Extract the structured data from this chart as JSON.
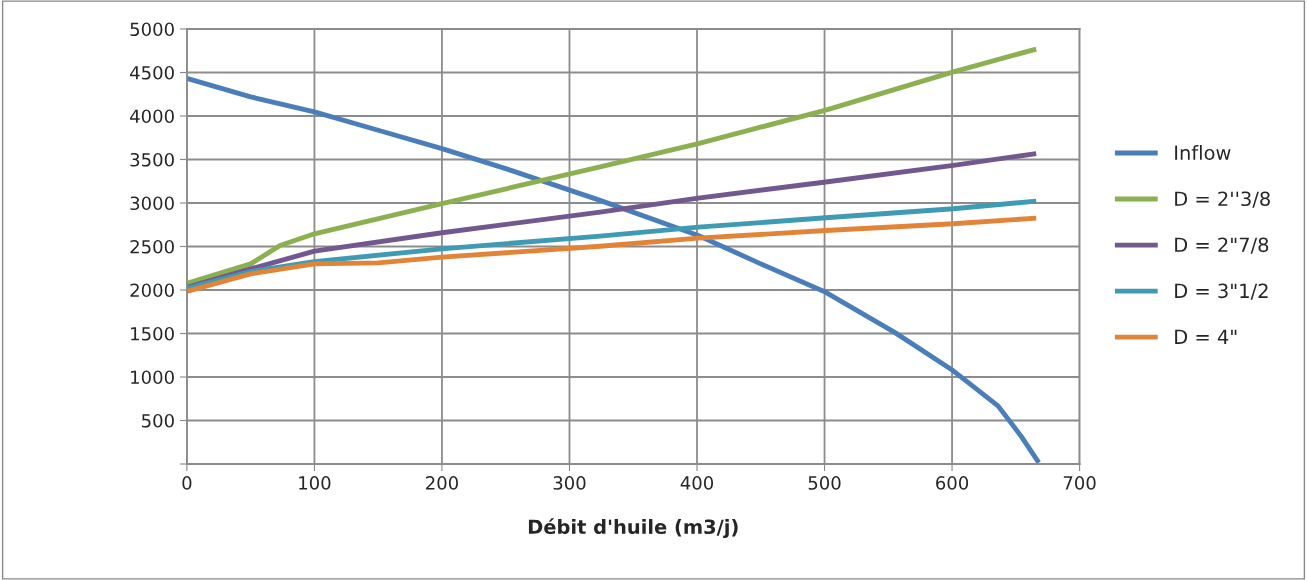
{
  "chart_data": {
    "type": "line",
    "xlabel": "Débit d'huile (m3/j)",
    "xlim": [
      0,
      700
    ],
    "xticks": [
      0,
      100,
      200,
      300,
      400,
      500,
      600,
      700
    ],
    "ylim": [
      0,
      5000
    ],
    "yticks": [
      {
        "value": 0,
        "label": null
      },
      500,
      1000,
      1500,
      2000,
      2500,
      3000,
      3500,
      4000,
      4500,
      5000
    ],
    "grid": true,
    "legend": "right",
    "marker": "none",
    "line_style": "solid",
    "series": [
      {
        "name": "Inflow",
        "color": "#4a7ebb",
        "x": [
          0,
          50,
          100,
          150,
          200,
          250,
          324,
          401,
          450,
          501,
          555,
          601,
          636,
          654,
          668
        ],
        "values": [
          4432,
          4220,
          4047,
          3836,
          3625,
          3395,
          3030,
          2627,
          2300,
          1973,
          1513,
          1071,
          668,
          323,
          15
        ]
      },
      {
        "name": "D = 2''3/8",
        "color": "#8cb050",
        "x": [
          0,
          50,
          73,
          100,
          200,
          324,
          401,
          501,
          601,
          666
        ],
        "values": [
          2077,
          2300,
          2511,
          2646,
          2992,
          3414,
          3683,
          4067,
          4508,
          4769
        ]
      },
      {
        "name": "D = 2\"7/8",
        "color": "#73578f",
        "x": [
          0,
          50,
          100,
          200,
          324,
          401,
          501,
          601,
          666
        ],
        "values": [
          2031,
          2243,
          2446,
          2658,
          2895,
          3057,
          3241,
          3433,
          3568
        ]
      },
      {
        "name": "D = 3\"1/2",
        "color": "#3e9bb3",
        "x": [
          0,
          50,
          100,
          200,
          324,
          401,
          501,
          601,
          666
        ],
        "values": [
          2020,
          2212,
          2327,
          2473,
          2619,
          2722,
          2830,
          2934,
          3022
        ]
      },
      {
        "name": "D = 4\"",
        "color": "#e28438",
        "x": [
          0,
          50,
          100,
          150,
          200,
          324,
          401,
          501,
          601,
          666
        ],
        "values": [
          1985,
          2185,
          2300,
          2312,
          2377,
          2503,
          2596,
          2684,
          2761,
          2826
        ]
      }
    ]
  }
}
